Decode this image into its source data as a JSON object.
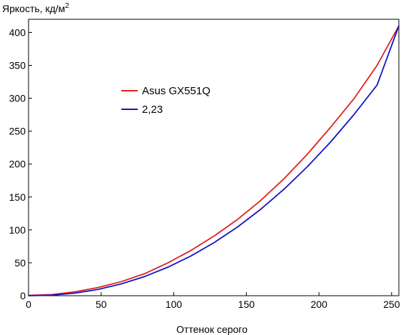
{
  "chart_data": {
    "type": "line",
    "ylabel": "Яркость, кд/м",
    "ylabel_superscript": "2",
    "xlabel": "Оттенок серого",
    "xlim": [
      0,
      255
    ],
    "ylim": [
      0,
      420
    ],
    "x_ticks": [
      0,
      50,
      100,
      150,
      200,
      250
    ],
    "y_ticks": [
      0,
      50,
      100,
      150,
      200,
      250,
      300,
      350,
      400
    ],
    "grid": false,
    "legend_position": "upper-left-center",
    "series": [
      {
        "name": "Asus GX551Q",
        "color": "#e0201e",
        "x": [
          0,
          16,
          32,
          48,
          64,
          80,
          96,
          112,
          128,
          144,
          160,
          176,
          192,
          208,
          224,
          240,
          255
        ],
        "y": [
          0.5,
          1.8,
          6,
          12.5,
          21.5,
          33.5,
          50,
          69,
          91,
          116,
          145,
          178,
          215,
          256,
          299,
          350,
          410
        ]
      },
      {
        "name": "2,23",
        "color": "#1414c8",
        "gamma": 2.23,
        "x": [
          0,
          16,
          32,
          48,
          64,
          80,
          96,
          112,
          128,
          144,
          160,
          176,
          192,
          208,
          224,
          240,
          255
        ],
        "y": [
          0,
          0.85,
          3.9,
          9.6,
          18.0,
          29.2,
          43.4,
          60.6,
          81.0,
          104.6,
          131.6,
          162.0,
          196.0,
          233.6,
          275.0,
          320.1,
          410
        ]
      }
    ]
  }
}
